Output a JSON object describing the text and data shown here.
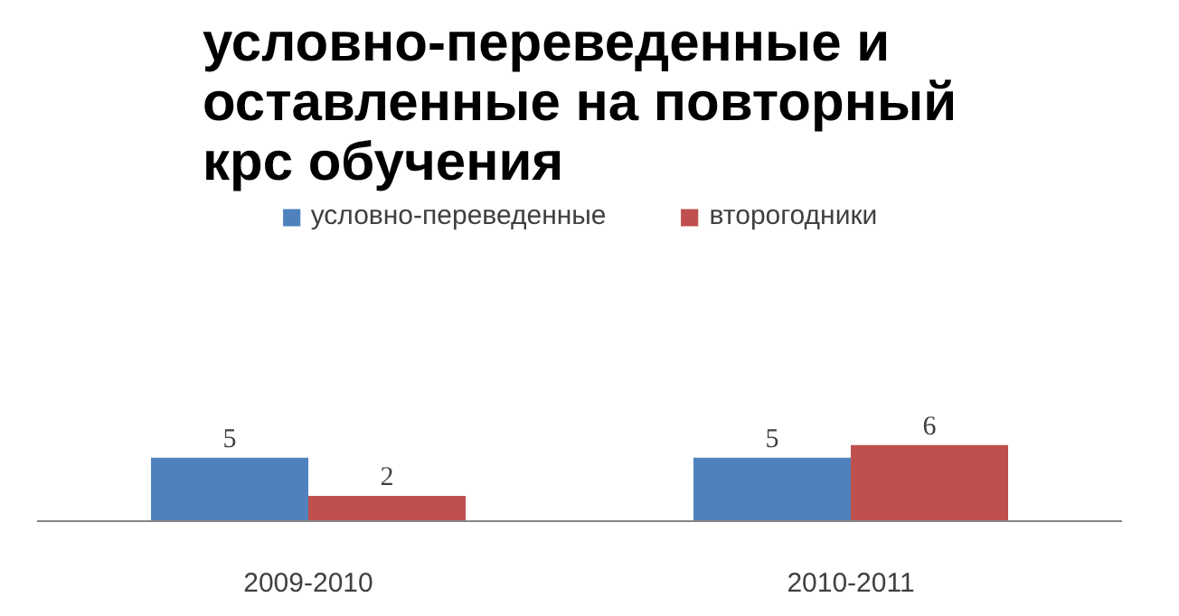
{
  "chart_data": {
    "type": "bar",
    "title": "условно-переведенные и оставленные на повторный крс обучения",
    "categories": [
      "2009-2010",
      "2010-2011"
    ],
    "series": [
      {
        "name": "условно-переведенные",
        "color": "#4f81bd",
        "values": [
          5,
          5
        ]
      },
      {
        "name": "второгодники",
        "color": "#c0504d",
        "values": [
          2,
          6
        ]
      }
    ],
    "data_labels": true,
    "legend": "top"
  }
}
